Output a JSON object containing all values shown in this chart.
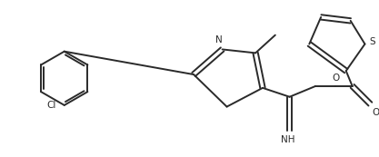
{
  "background": "#ffffff",
  "line_color": "#2a2a2a",
  "line_width": 1.4,
  "figsize": [
    4.17,
    1.73
  ],
  "dpi": 100,
  "xlim": [
    0,
    10
  ],
  "ylim": [
    0,
    4.15
  ]
}
